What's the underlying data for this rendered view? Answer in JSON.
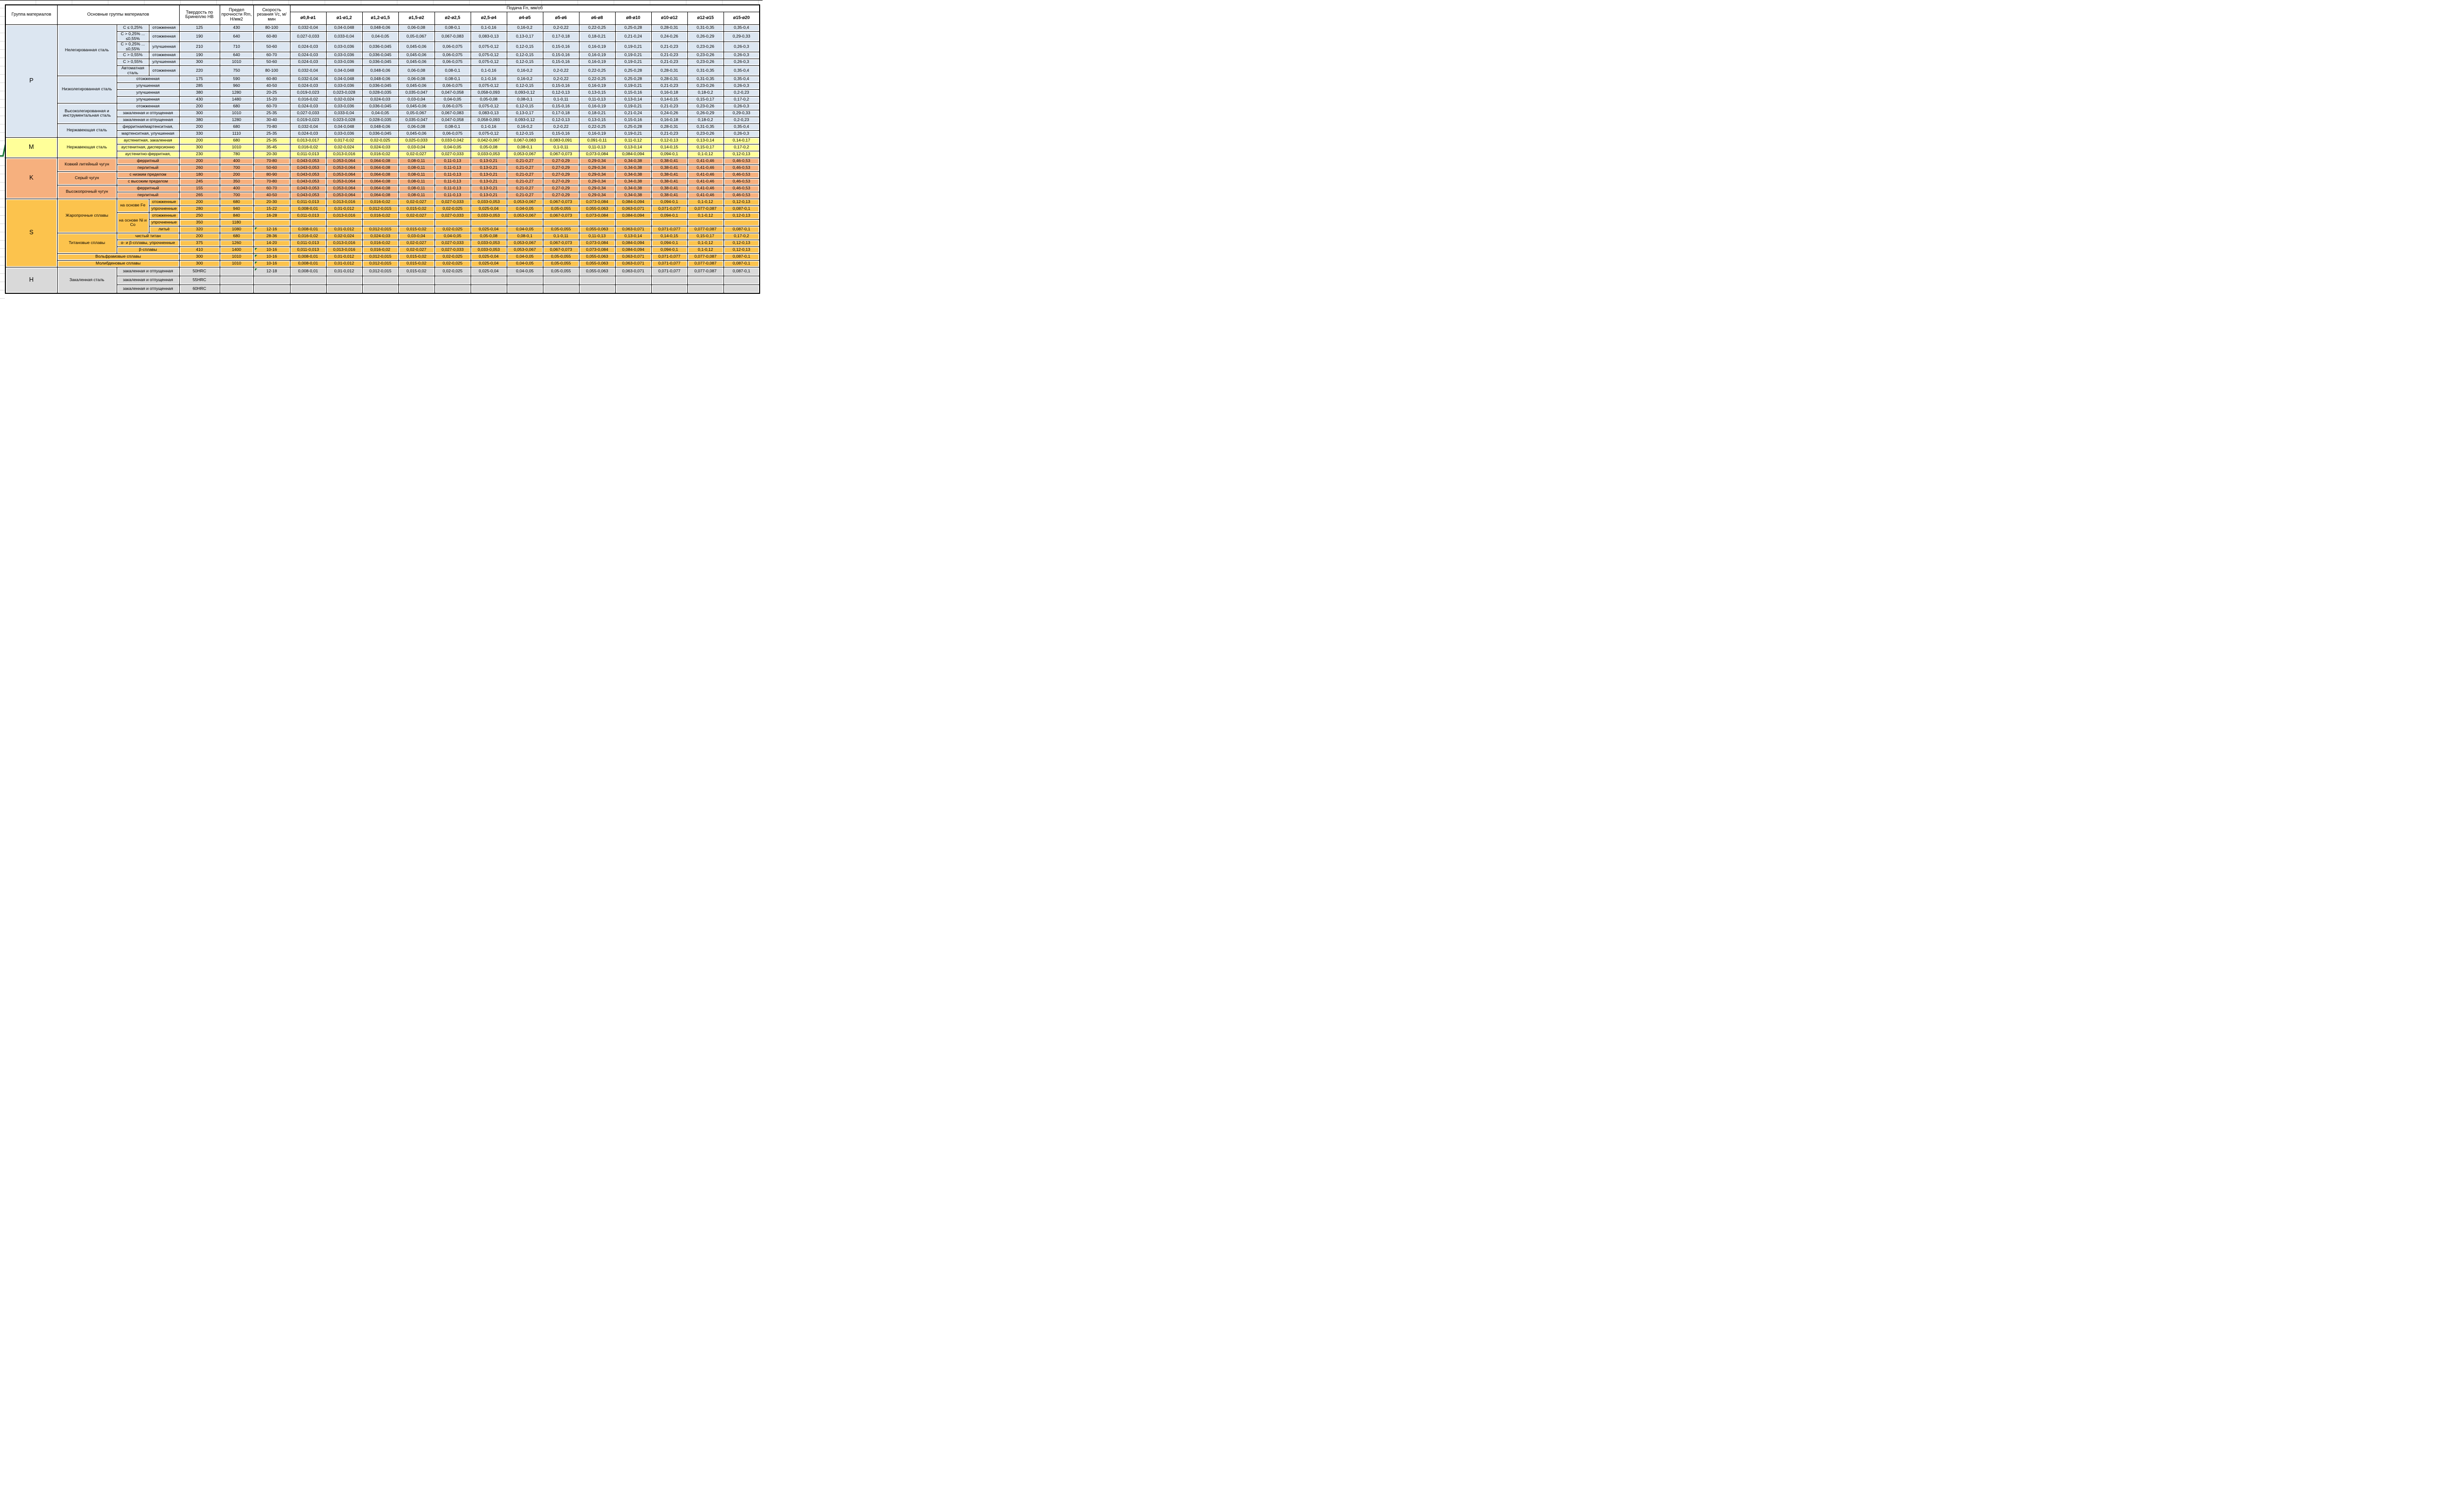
{
  "header": {
    "col_group": "Группа материалов",
    "col_main": "Основные группы материалов",
    "col_hb": "Твердость по Бринеллю HB",
    "col_rm": "Предел прочности Rm, Н/мм2",
    "col_vc": "Скорость резания Vc, м/мин",
    "feed_title": "Подача Fn, мм/об",
    "feed_cols": [
      "ø0,8-ø1",
      "ø1-ø1,2",
      "ø1,2-ø1,5",
      "ø1,5-ø2",
      "ø2-ø2,5",
      "ø2,5-ø4",
      "ø4-ø5",
      "ø5-ø6",
      "ø6-ø8",
      "ø8-ø10",
      "ø10-ø12",
      "ø12-ø15",
      "ø15-ø20"
    ]
  },
  "group_colors": {
    "P": "#dce6f1",
    "M": "#ffff99",
    "K": "#f6b07e",
    "S": "#fcc34d",
    "H": "#d9d9d9"
  },
  "status_colors": {
    "error_indicator_green": "#1e7b34"
  },
  "feed_patterns": {
    "A": [
      "0,032-0,04",
      "0,04-0,048",
      "0,048-0,06",
      "0,06-0,08",
      "0,08-0,1",
      "0,1-0,16",
      "0,16-0,2",
      "0,2-0,22",
      "0,22-0,25",
      "0,25-0,28",
      "0,28-0,31",
      "0,31-0,35",
      "0,35-0,4"
    ],
    "B": [
      "0,027-0,033",
      "0,033-0,04",
      "0,04-0,05",
      "0,05-0,067",
      "0,067-0,083",
      "0,083-0,13",
      "0,13-0,17",
      "0,17-0,18",
      "0,18-0,21",
      "0,21-0,24",
      "0,24-0,26",
      "0,26-0,29",
      "0,29-0,33"
    ],
    "C": [
      "0,024-0,03",
      "0,03-0,036",
      "0,036-0,045",
      "0,045-0,06",
      "0,06-0,075",
      "0,075-0,12",
      "0,12-0,15",
      "0,15-0,16",
      "0,16-0,19",
      "0,19-0,21",
      "0,21-0,23",
      "0,23-0,26",
      "0,26-0,3"
    ],
    "D": [
      "0,019-0,023",
      "0,023-0,028",
      "0,028-0,035",
      "0,035-0,047",
      "0,047-0,058",
      "0,058-0,093",
      "0,093-0,12",
      "0,12-0,13",
      "0,13-0,15",
      "0,15-0,16",
      "0,16-0,18",
      "0,18-0,2",
      "0,2-0,23"
    ],
    "E": [
      "0,016-0,02",
      "0,02-0,024",
      "0,024-0,03",
      "0,03-0,04",
      "0,04-0,05",
      "0,05-0,08",
      "0,08-0,1",
      "0,1-0,11",
      "0,11-0,13",
      "0,13-0,14",
      "0,14-0,15",
      "0,15-0,17",
      "0,17-0,2"
    ],
    "F": [
      "0,013-0,017",
      "0,017-0,02",
      "0,02-0,025",
      "0,025-0,033",
      "0,033-0,042",
      "0,042-0,067",
      "0,067-0,083",
      "0,083-0,091",
      "0,091-0,11",
      "0,11-0,12",
      "0,12-0,13",
      "0,13-0,14",
      "0,14-0,17"
    ],
    "G": [
      "0,011-0,013",
      "0,013-0,016",
      "0,016-0,02",
      "0,02-0,027",
      "0,027-0,033",
      "0,033-0,053",
      "0,053-0,067",
      "0,067-0,073",
      "0,073-0,084",
      "0,084-0,094",
      "0,094-0,1",
      "0,1-0,12",
      "0,12-0,13"
    ],
    "K": [
      "0,043-0,053",
      "0,053-0,064",
      "0,064-0,08",
      "0,08-0,11",
      "0,11-0,13",
      "0,13-0,21",
      "0,21-0,27",
      "0,27-0,29",
      "0,29-0,34",
      "0,34-0,38",
      "0,38-0,41",
      "0,41-0,46",
      "0,46-0,53"
    ],
    "H": [
      "0,008-0,01",
      "0,01-0,012",
      "0,012-0,015",
      "0,015-0,02",
      "0,02-0,025",
      "0,025-0,04",
      "0,04-0,05",
      "0,05-0,055",
      "0,055-0,063",
      "0,063-0,071",
      "0,071-0,077",
      "0,077-0,087",
      "0,087-0,1"
    ],
    "X": [
      "",
      "",
      "",
      "",
      "",
      "",
      "",
      "",
      "",
      "",
      "",
      "",
      ""
    ]
  },
  "rows": [
    {
      "z": "P",
      "g": [
        "P",
        15
      ],
      "cat": [
        "Нелегированная сталь",
        6
      ],
      "s1": [
        "C ≤ 0,25%",
        1
      ],
      "s2": "отожженная",
      "hb": "125",
      "rm": "430",
      "vc": "80-100",
      "f": "A"
    },
    {
      "z": "P",
      "s1": [
        "C > 0,25% ... ≤0,55%",
        1
      ],
      "s2": "отожженная",
      "hb": "190",
      "rm": "640",
      "vc": "60-80",
      "f": "B",
      "size": "tall"
    },
    {
      "z": "P",
      "s1": [
        "C > 0,25% ... ≤0,55%",
        1
      ],
      "s2": "улучшенная",
      "hb": "210",
      "rm": "710",
      "vc": "50-60",
      "f": "C",
      "size": "tall"
    },
    {
      "z": "P",
      "s1": [
        "C > 0,55%",
        1
      ],
      "s2": "отожженная",
      "hb": "190",
      "rm": "640",
      "vc": "60-70",
      "f": "C"
    },
    {
      "z": "P",
      "s1": [
        "C > 0,55%",
        1
      ],
      "s2": "улучшенная",
      "hb": "300",
      "rm": "1010",
      "vc": "50-60",
      "f": "C"
    },
    {
      "z": "P",
      "s1": [
        "Автоматная сталь",
        1
      ],
      "s2": "отожженная",
      "hb": "220",
      "rm": "750",
      "vc": "80-100",
      "f": "A",
      "size": "tall"
    },
    {
      "z": "P",
      "cat": [
        "Низколегированная сталь",
        4
      ],
      "sm": "отожженная",
      "hb": "175",
      "rm": "590",
      "vc": "60-80",
      "f": "A"
    },
    {
      "z": "P",
      "sm": "улучшенная",
      "hb": "285",
      "rm": "960",
      "vc": "40-50",
      "f": "C"
    },
    {
      "z": "P",
      "sm": "улучшенная",
      "hb": "380",
      "rm": "1280",
      "vc": "20-25",
      "f": "D"
    },
    {
      "z": "P",
      "sm": "улучшенная",
      "hb": "430",
      "rm": "1480",
      "vc": "15-20",
      "f": "E"
    },
    {
      "z": "P",
      "cat": [
        "Высоколегированная и инструментальная сталь",
        3
      ],
      "sm": "отожженная",
      "hb": "200",
      "rm": "680",
      "vc": "60-70",
      "f": "C"
    },
    {
      "z": "P",
      "sm": "закаленная и отпущенная",
      "hb": "300",
      "rm": "1010",
      "vc": "25-35",
      "f": "B"
    },
    {
      "z": "P",
      "sm": "закаленная и отпущенная",
      "hb": "380",
      "rm": "1280",
      "vc": "30-40",
      "f": "D"
    },
    {
      "z": "P",
      "cat": [
        "Нержавеющая сталь",
        2
      ],
      "sm": "ферритная/мартенситная,",
      "hb": "200",
      "rm": "680",
      "vc": "70-80",
      "f": "A"
    },
    {
      "z": "P",
      "sm": "мартенситная, улучшенная",
      "hb": "330",
      "rm": "1110",
      "vc": "25-35",
      "f": "C"
    },
    {
      "z": "M",
      "g": [
        "M",
        3
      ],
      "cat": [
        "Нержавеющая сталь",
        3
      ],
      "sm": "аустенитная, закаленная",
      "hb": "200",
      "rm": "680",
      "vc": "25-35",
      "f": "F"
    },
    {
      "z": "M",
      "sm": "аустенитная, дисперсионно",
      "hb": "300",
      "rm": "1010",
      "vc": "35-45",
      "f": "E"
    },
    {
      "z": "M",
      "sm": "аустенитно-ферритная,",
      "hb": "230",
      "rm": "780",
      "vc": "20-30",
      "f": "G"
    },
    {
      "z": "K",
      "g": [
        "K",
        6
      ],
      "cat": [
        "Ковкий литейный чугун",
        2
      ],
      "sm": "ферритный",
      "hb": "200",
      "rm": "400",
      "vc": "70-80",
      "f": "K"
    },
    {
      "z": "K",
      "sm": "перлитный",
      "hb": "260",
      "rm": "700",
      "vc": "50-60",
      "f": "K"
    },
    {
      "z": "K",
      "cat": [
        "Серый чугун",
        2
      ],
      "sm": "с низким пределом",
      "hb": "180",
      "rm": "200",
      "vc": "80-90",
      "f": "K"
    },
    {
      "z": "K",
      "sm": "с высоким пределом",
      "hb": "245",
      "rm": "350",
      "vc": "70-80",
      "f": "K"
    },
    {
      "z": "K",
      "cat": [
        "Высокопрочный чугун",
        2
      ],
      "sm": "ферритный",
      "hb": "155",
      "rm": "400",
      "vc": "60-70",
      "f": "K"
    },
    {
      "z": "K",
      "sm": "перлитный",
      "hb": "265",
      "rm": "700",
      "vc": "40-50",
      "f": "K"
    },
    {
      "z": "S",
      "g": [
        "S",
        10
      ],
      "cat": [
        "Жаропрочные сплавы",
        5
      ],
      "s1": [
        "на основе Fe",
        2
      ],
      "s2": "отожженные",
      "hb": "200",
      "rm": "680",
      "vc": "20-30",
      "f": "G"
    },
    {
      "z": "S",
      "s2": "упрочненные",
      "hb": "280",
      "rm": "940",
      "vc": "15-22",
      "f": "H"
    },
    {
      "z": "S",
      "s1": [
        "на основе Ni и Co",
        3
      ],
      "s2": "отожженные",
      "hb": "250",
      "rm": "840",
      "vc": "16-28",
      "f": "G"
    },
    {
      "z": "S",
      "s2": "упрочненные",
      "hb": "350",
      "rm": "1180",
      "vc": "",
      "f": "X"
    },
    {
      "z": "S",
      "s2": "литьё",
      "hb": "320",
      "rm": "1080",
      "vc": "12-16",
      "flag": true,
      "f": "H"
    },
    {
      "z": "S",
      "cat": [
        "Титановые сплавы",
        3
      ],
      "sm": "чистый титан",
      "hb": "200",
      "rm": "680",
      "vc": "28-36",
      "f": "E"
    },
    {
      "z": "S",
      "sm": "α- и β-сплавы, упрочненные",
      "hb": "375",
      "rm": "1260",
      "vc": "14-20",
      "f": "G"
    },
    {
      "z": "S",
      "sm": "β-сплавы",
      "hb": "410",
      "rm": "1400",
      "vc": "10-16",
      "flag": true,
      "f": "G"
    },
    {
      "z": "S",
      "cm": "Вольфрамовые сплавы",
      "hb": "300",
      "rm": "1010",
      "vc": "10-16",
      "flag": true,
      "f": "H"
    },
    {
      "z": "S",
      "cm": "Молибденовые сплавы",
      "hb": "300",
      "rm": "1010",
      "vc": "10-16",
      "flag": true,
      "f": "H"
    },
    {
      "z": "H",
      "g": [
        "H",
        3
      ],
      "cat": [
        "Закаленная сталь",
        3
      ],
      "sm": "закаленная и отпущенная",
      "hb": "50HRC",
      "rm": "",
      "vc": "12-18",
      "flag": true,
      "f": "H",
      "size": "hrow"
    },
    {
      "z": "H",
      "sm": "закаленная и отпущенная",
      "hb": "55HRC",
      "rm": "",
      "vc": "",
      "f": "X",
      "size": "hrow"
    },
    {
      "z": "H",
      "sm": "закаленная и отпущенная",
      "hb": "60HRC",
      "rm": "",
      "vc": "",
      "f": "X",
      "size": "hrow"
    }
  ]
}
